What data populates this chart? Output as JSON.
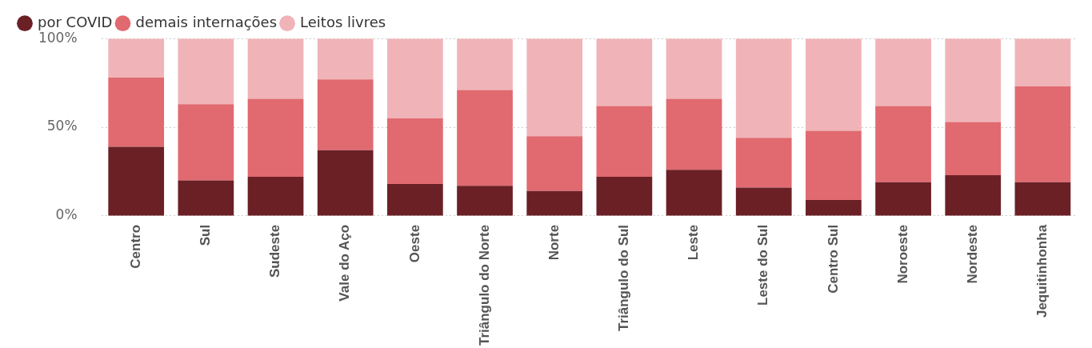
{
  "chart_data": {
    "type": "bar",
    "stacked": true,
    "legend": "top left",
    "grid": "y",
    "categories": [
      "Centro",
      "Sul",
      "Sudeste",
      "Vale do Aço",
      "Oeste",
      "Triângulo do Norte",
      "Norte",
      "Triângulo do Sul",
      "Leste",
      "Leste do Sul",
      "Centro Sul",
      "Noroeste",
      "Nordeste",
      "Jequitinhonha"
    ],
    "ylim": [
      0,
      100
    ],
    "yticks": [
      {
        "value": 0,
        "label": "0%"
      },
      {
        "value": 50,
        "label": "50%"
      },
      {
        "value": 100,
        "label": "100%"
      }
    ],
    "series": [
      {
        "name": "por COVID",
        "color": "#6b2026",
        "values": [
          39,
          20,
          22,
          37,
          18,
          17,
          14,
          22,
          26,
          16,
          9,
          19,
          23,
          19
        ]
      },
      {
        "name": "demais internações",
        "color": "#e06a70",
        "values": [
          39,
          43,
          44,
          40,
          37,
          54,
          31,
          40,
          40,
          28,
          39,
          43,
          30,
          54
        ]
      },
      {
        "name": "Leitos livres",
        "color": "#f0b4b8",
        "values": [
          22,
          37,
          34,
          23,
          45,
          29,
          55,
          38,
          34,
          56,
          52,
          38,
          47,
          27
        ]
      }
    ]
  }
}
